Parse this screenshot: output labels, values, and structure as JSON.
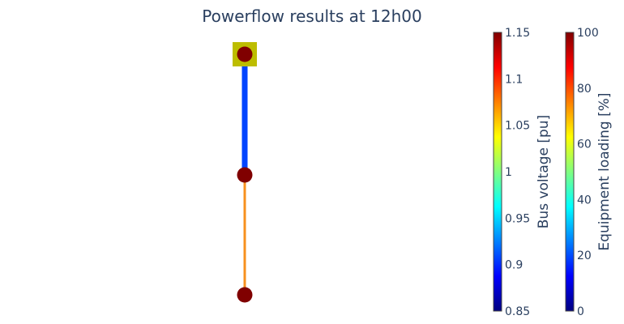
{
  "chart_data": {
    "type": "network",
    "title": "Powerflow results at 12h00",
    "nodes": [
      {
        "label": "",
        "level": 0,
        "voltage_pu": 1.15,
        "color": "#800000",
        "marker": "circle"
      },
      {
        "label": "",
        "level": 1,
        "voltage_pu": 1.15,
        "color": "#800000",
        "marker": "circle"
      },
      {
        "label": "",
        "level": 2,
        "voltage_pu": 1.15,
        "color": "#800000",
        "marker": "circle"
      }
    ],
    "equipment": [
      {
        "type": "transformer",
        "at_node": 0,
        "color": "#bdbd00"
      }
    ],
    "edges": [
      {
        "from": 0,
        "to": 1,
        "loading_pct": 15,
        "color": "#0044ff"
      },
      {
        "from": 1,
        "to": 2,
        "loading_pct": 72,
        "color": "#f7901e"
      }
    ],
    "colorbars": [
      {
        "title": "Bus voltage [pu]",
        "range": [
          0.85,
          1.15
        ],
        "ticks": [
          0.85,
          0.9,
          0.95,
          1,
          1.05,
          1.1,
          1.15
        ],
        "tick_labels": [
          "0.85",
          "0.9",
          "0.95",
          "1",
          "1.05",
          "1.1",
          "1.15"
        ],
        "colorscale": "jet"
      },
      {
        "title": "Equipment loading [%]",
        "range": [
          0,
          100
        ],
        "ticks": [
          0,
          20,
          40,
          60,
          80,
          100
        ],
        "tick_labels": [
          "0",
          "20",
          "40",
          "60",
          "80",
          "100"
        ],
        "colorscale": "jet"
      }
    ],
    "jet_stops": [
      "#000080",
      "#0000ff",
      "#0080ff",
      "#00ffff",
      "#80ff80",
      "#ffff00",
      "#ff8000",
      "#ff0000",
      "#800000"
    ],
    "text_color": "#2a3f5f"
  }
}
